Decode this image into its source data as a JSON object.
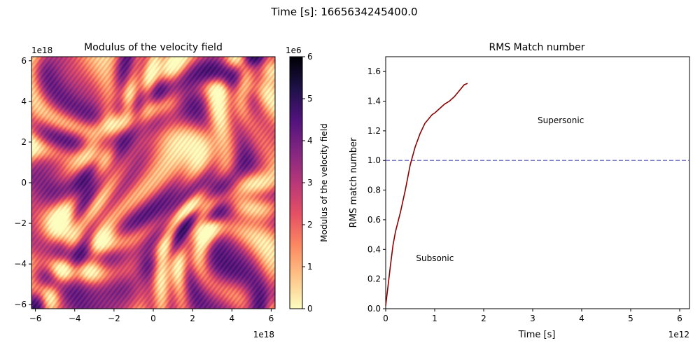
{
  "suptitle": "Time [s]: 1665634245400.0",
  "chart_data": [
    {
      "type": "heatmap",
      "title": "Modulus of the velocity field",
      "xlim": [
        -6.2,
        6.2
      ],
      "ylim": [
        -6.2,
        6.2
      ],
      "x_ticks": [
        -6,
        -4,
        -2,
        0,
        2,
        4,
        6
      ],
      "x_tick_labels": [
        "−6",
        "−4",
        "−2",
        "0",
        "2",
        "4",
        "6"
      ],
      "y_ticks": [
        -6,
        -4,
        -2,
        0,
        2,
        4,
        6
      ],
      "y_tick_labels": [
        "−6",
        "−4",
        "−2",
        "0",
        "2",
        "4",
        "6"
      ],
      "x_offset_label": "1e18",
      "y_offset_label": "1e18",
      "colormap": "magma_r",
      "colorbar": {
        "label": "Modulus of the velocity field",
        "offset_label": "1e6",
        "range": [
          0,
          6
        ],
        "ticks": [
          0,
          1,
          2,
          3,
          4,
          5,
          6
        ],
        "tick_labels": [
          "0",
          "1",
          "2",
          "3",
          "4",
          "5",
          "6"
        ],
        "colors": [
          "#fcfdbf",
          "#fec488",
          "#fc8961",
          "#e55064",
          "#b73779",
          "#822681",
          "#51127c",
          "#1d1147",
          "#000004"
        ]
      }
    },
    {
      "type": "line",
      "title": "RMS Match number",
      "xlabel": "Time [s]",
      "ylabel": "RMS match number",
      "xlim": [
        0,
        6.2
      ],
      "ylim": [
        0,
        1.7
      ],
      "x_offset_label": "1e12",
      "x_ticks": [
        0,
        1,
        2,
        3,
        4,
        5,
        6
      ],
      "x_tick_labels": [
        "0",
        "1",
        "2",
        "3",
        "4",
        "5",
        "6"
      ],
      "y_ticks": [
        0,
        0.2,
        0.4,
        0.6,
        0.8,
        1.0,
        1.2,
        1.4,
        1.6
      ],
      "y_tick_labels": [
        "0.0",
        "0.2",
        "0.4",
        "0.6",
        "0.8",
        "1.0",
        "1.2",
        "1.4",
        "1.6"
      ],
      "series": [
        {
          "color": "#8b0000",
          "x": [
            0,
            0.05,
            0.1,
            0.15,
            0.2,
            0.3,
            0.4,
            0.5,
            0.6,
            0.7,
            0.8,
            0.9,
            0.95,
            1.0,
            1.1,
            1.2,
            1.3,
            1.4,
            1.5,
            1.6,
            1.67
          ],
          "y": [
            0.02,
            0.16,
            0.3,
            0.43,
            0.52,
            0.65,
            0.8,
            0.97,
            1.09,
            1.18,
            1.25,
            1.29,
            1.31,
            1.32,
            1.35,
            1.38,
            1.4,
            1.43,
            1.47,
            1.51,
            1.52
          ]
        }
      ],
      "reference_line": {
        "y": 1.0,
        "color": "#7777cc",
        "style": "dashed"
      },
      "annotations": [
        {
          "text": "Supersonic",
          "x": 3.1,
          "y": 1.27
        },
        {
          "text": "Subsonic",
          "x": 0.62,
          "y": 0.34
        }
      ],
      "grid": false
    }
  ]
}
